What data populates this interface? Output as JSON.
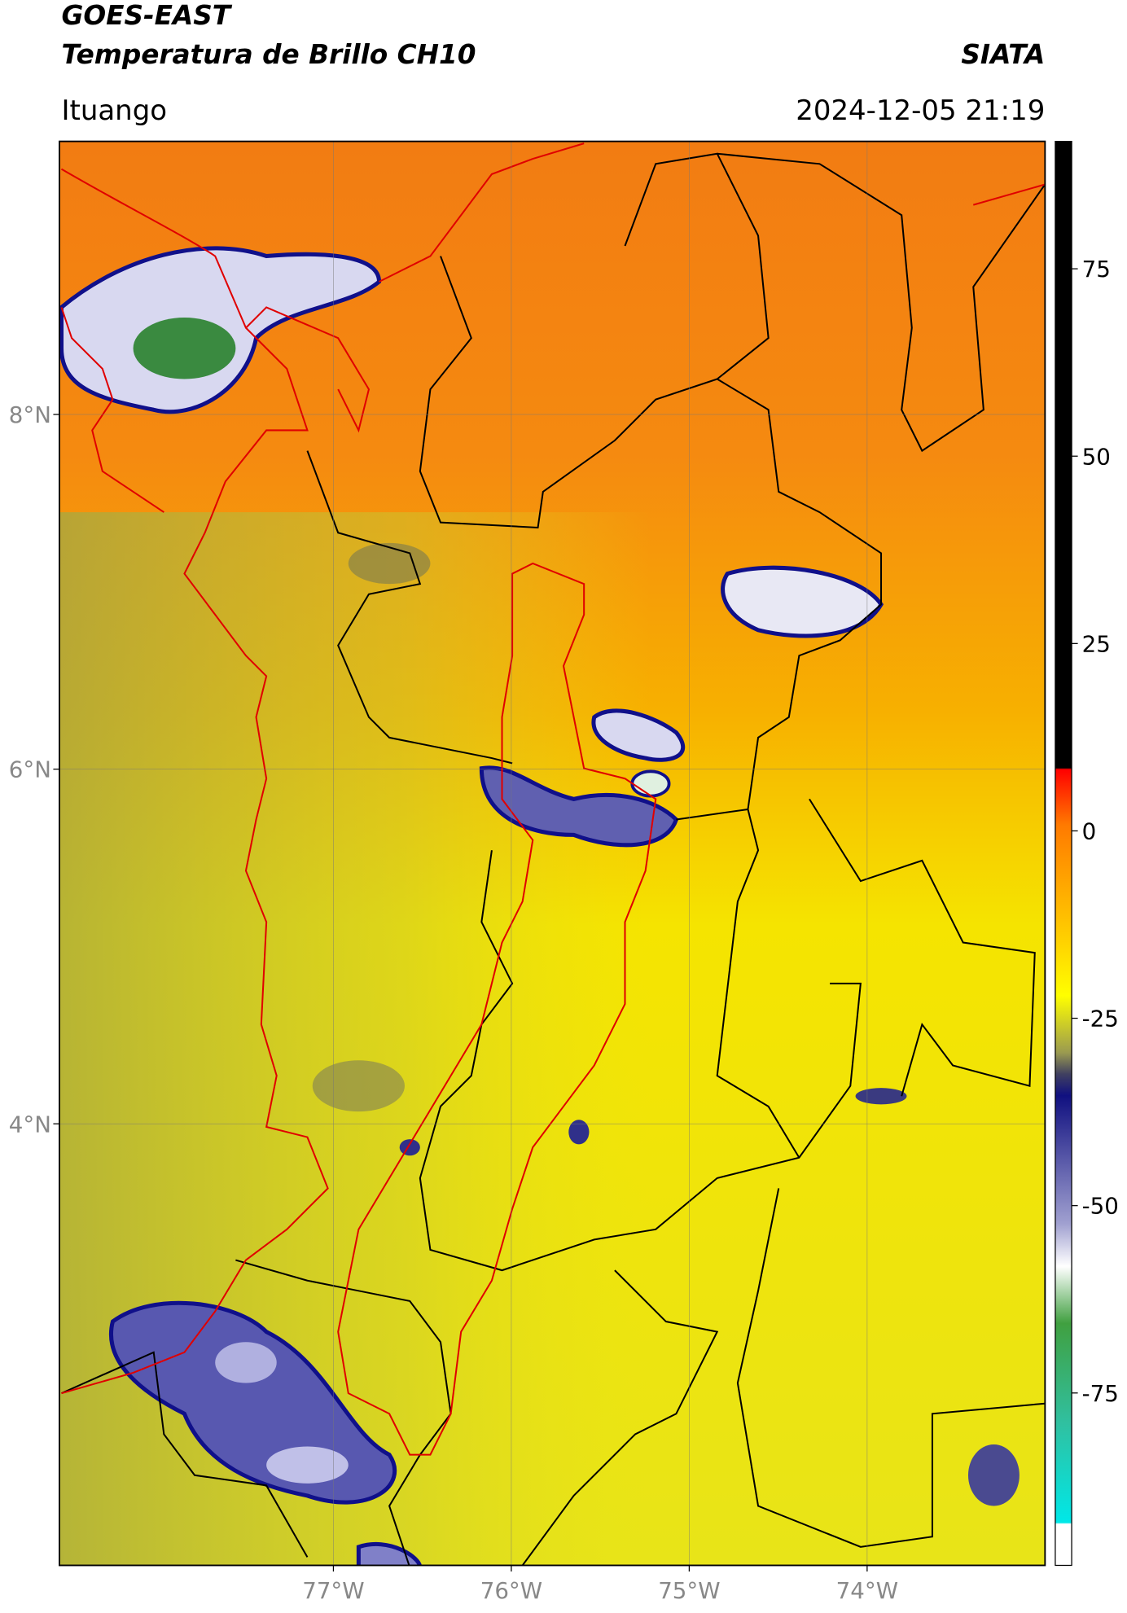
{
  "header": {
    "satellite": "GOES-EAST",
    "product": "Temperatura de Brillo CH10",
    "agency": "SIATA",
    "region": "Ituango",
    "datetime": "2024-12-05 21:19"
  },
  "map": {
    "xlim": [
      -78.54,
      -73.0
    ],
    "ylim": [
      1.51,
      9.54
    ],
    "xticks": [
      {
        "value": -77,
        "label": "77°W"
      },
      {
        "value": -76,
        "label": "76°W"
      },
      {
        "value": -75,
        "label": "75°W"
      },
      {
        "value": -74,
        "label": "74°W"
      }
    ],
    "yticks": [
      {
        "value": 8,
        "label": "8°N"
      },
      {
        "value": 6,
        "label": "6°N"
      },
      {
        "value": 4,
        "label": "4°N"
      }
    ],
    "grid": true
  },
  "colorbar": {
    "lim": [
      -98,
      92
    ],
    "ticks": [
      75,
      50,
      25,
      0,
      -25,
      -50,
      -75
    ]
  }
}
